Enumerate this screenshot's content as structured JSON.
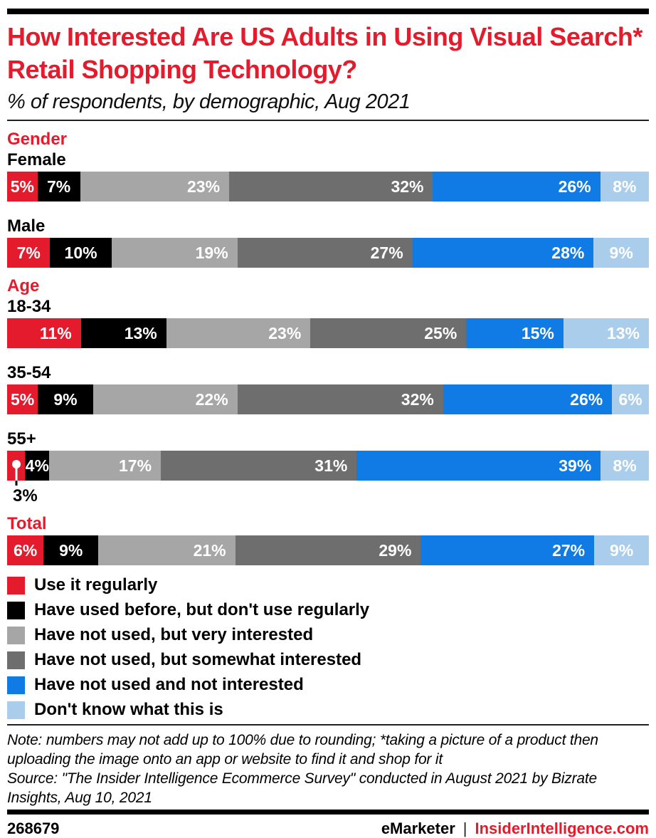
{
  "colors": {
    "brand_red": "#e41b2c",
    "text_black": "#000000",
    "rule_color": "#231f20"
  },
  "header": {
    "title": "How Interested Are US Adults in Using Visual Search* Retail Shopping Technology?",
    "subtitle": "% of respondents, by demographic, Aug 2021"
  },
  "chart_data": {
    "type": "bar",
    "stacked": true,
    "orientation": "horizontal",
    "unit": "%",
    "title": "How Interested Are US Adults in Using Visual Search* Retail Shopping Technology?",
    "subtitle": "% of respondents, by demographic, Aug 2021",
    "series": [
      {
        "name": "Use it regularly",
        "color": "#e41b2c"
      },
      {
        "name": "Have used before, but don't use regularly",
        "color": "#000000"
      },
      {
        "name": "Have not used, but very interested",
        "color": "#a6a6a6"
      },
      {
        "name": "Have not used, but somewhat interested",
        "color": "#6e6e6e"
      },
      {
        "name": "Have not used and not interested",
        "color": "#117be5"
      },
      {
        "name": "Don't know what this is",
        "color": "#a9cdeb"
      }
    ],
    "groups": [
      {
        "section": "Gender",
        "rows": [
          {
            "label": "Female",
            "values": [
              5,
              7,
              23,
              32,
              26,
              8
            ]
          },
          {
            "label": "Male",
            "values": [
              7,
              10,
              19,
              27,
              28,
              9
            ]
          }
        ]
      },
      {
        "section": "Age",
        "rows": [
          {
            "label": "18-34",
            "values": [
              11,
              13,
              23,
              25,
              15,
              13
            ]
          },
          {
            "label": "35-54",
            "values": [
              5,
              9,
              22,
              32,
              26,
              6
            ]
          },
          {
            "label": "55+",
            "values": [
              3,
              4,
              17,
              31,
              39,
              8
            ],
            "callout_segment": 0,
            "callout_label": "3%"
          }
        ]
      },
      {
        "section": "Total",
        "rows": [
          {
            "label": null,
            "values": [
              6,
              9,
              21,
              29,
              27,
              9
            ]
          }
        ]
      }
    ],
    "label_threshold_right_align": 11
  },
  "note": {
    "note_text": "Note: numbers may not add up to 100% due to rounding; *taking a picture of a product then uploading the image onto an app or website to find it and shop for it",
    "source_text": "Source: \"The Insider Intelligence Ecommerce Survey\" conducted in August 2021 by Bizrate Insights, Aug 10, 2021"
  },
  "footer": {
    "chart_id": "268679",
    "brand_left": "eMarketer",
    "separator": "|",
    "brand_right": "InsiderIntelligence.com",
    "brand_right_color": "#e41b2c"
  }
}
